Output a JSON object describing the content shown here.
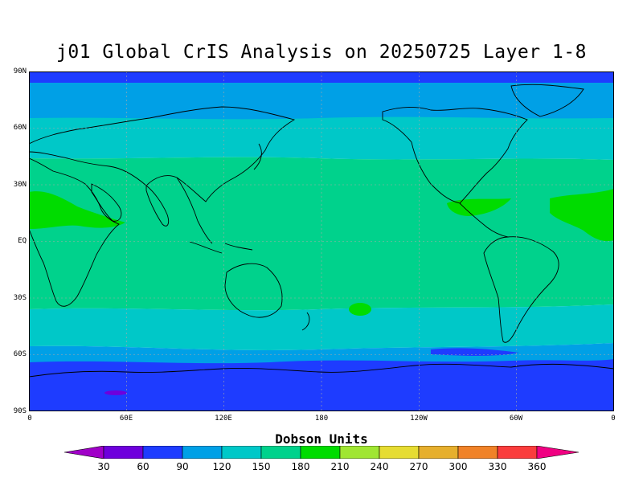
{
  "title": "j01 Global CrIS Analysis on 20250725 Layer 1-8",
  "y_axis_labels": [
    "90N",
    "60N",
    "30N",
    "EQ",
    "30S",
    "60S",
    "90S"
  ],
  "x_axis_labels": [
    "0",
    "60E",
    "120E",
    "180",
    "120W",
    "60W",
    "0"
  ],
  "colorbar": {
    "title": "Dobson Units",
    "levels": [
      "30",
      "60",
      "90",
      "120",
      "150",
      "180",
      "210",
      "240",
      "270",
      "300",
      "330",
      "360"
    ],
    "colors": [
      "#a000c8",
      "#6e00dc",
      "#1e3cff",
      "#00a0e6",
      "#00c8c8",
      "#00d28c",
      "#00dc00",
      "#a0e632",
      "#e6dc32",
      "#e6af2d",
      "#f08228",
      "#fa3c3c",
      "#f00082"
    ]
  },
  "map_colors": {
    "deep_blue": "#1e3cff",
    "sky_blue": "#00a0e6",
    "teal": "#00c8c8",
    "sea_green": "#00d28c",
    "green": "#00dc00"
  }
}
